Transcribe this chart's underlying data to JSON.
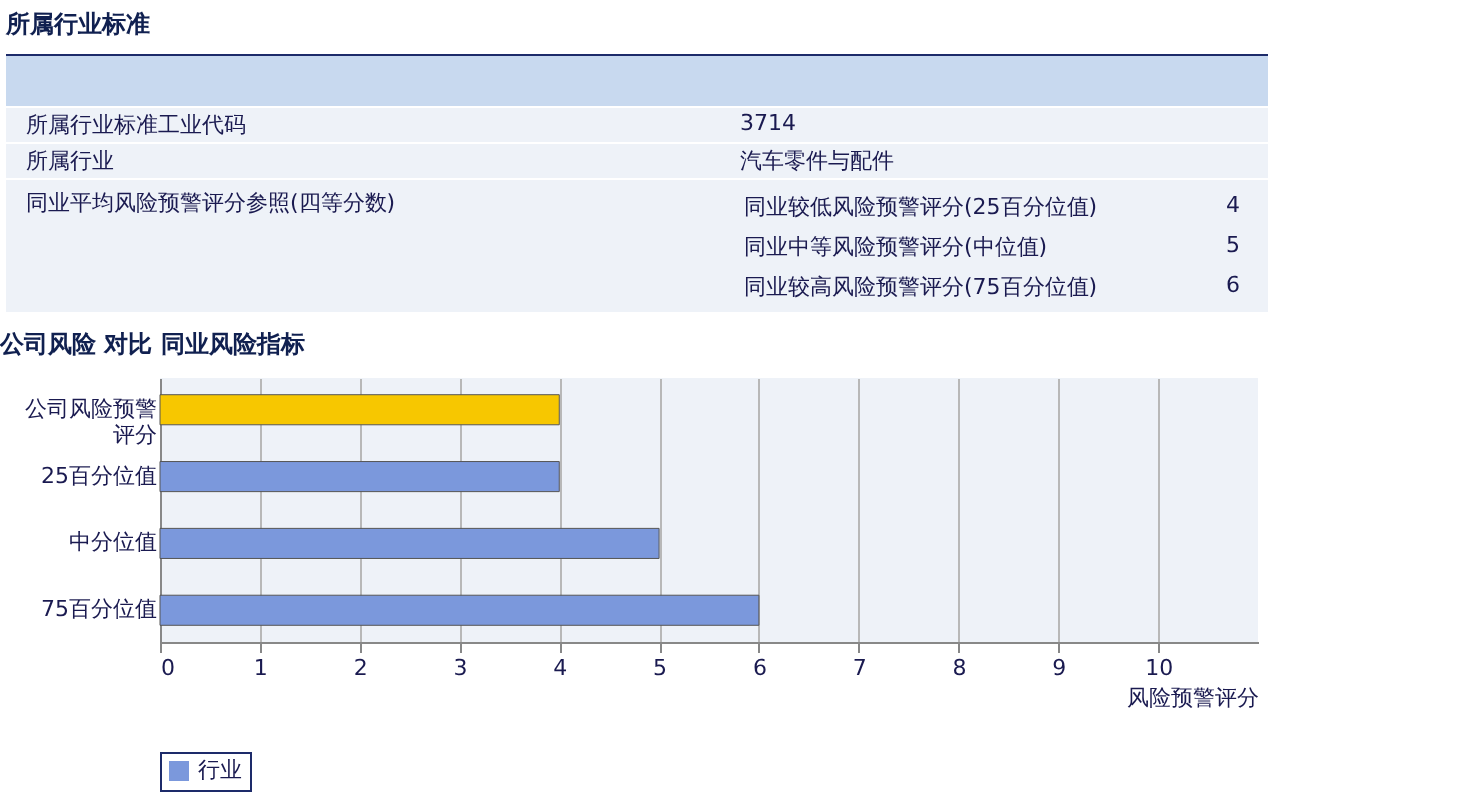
{
  "chart_data": [
    {
      "type": "other",
      "title": "所属行业标准",
      "annotations": [
        "所属行业标准工业代码",
        "3714",
        "所属行业",
        "汽车零件与配件",
        "同业平均风险预警评分参照(四等分数)",
        "同业较低风险预警评分(25百分位值)",
        "4",
        "同业中等风险预警评分(中位值)",
        "5",
        "同业较高风险预警评分(75百分位值)",
        "6"
      ]
    },
    {
      "type": "bar",
      "orientation": "horizontal",
      "title": "公司风险 对比 同业风险指标",
      "xlabel": "风险预警评分",
      "categories": [
        "公司风险预警评分",
        "25百分位值",
        "中分位值",
        "75百分位值"
      ],
      "series": [
        {
          "color": "#f7c700",
          "values": [
            4,
            null,
            null,
            null
          ]
        },
        {
          "name": "行业",
          "color": "#7b98dc",
          "values": [
            null,
            4,
            5,
            6
          ]
        }
      ],
      "xlim": [
        0,
        11
      ],
      "xticks": [
        0,
        1,
        2,
        3,
        4,
        5,
        6,
        7,
        8,
        9,
        10
      ],
      "grid": "x",
      "legend": "bottom"
    }
  ]
}
